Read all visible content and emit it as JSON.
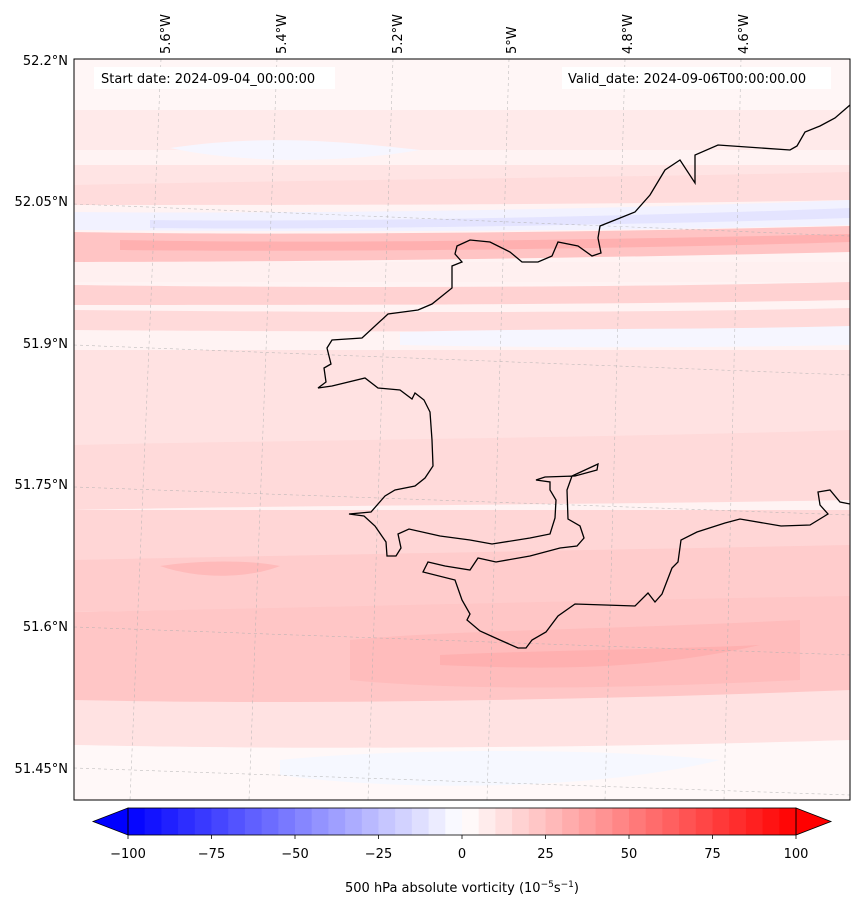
{
  "header": {
    "start_date": "Start date: 2024-09-04_00:00:00",
    "valid_date": "Valid_date: 2024-09-06T00:00:00.00"
  },
  "map": {
    "lon_labels": [
      "5.6°W",
      "5.4°W",
      "5.2°W",
      "5°W",
      "4.8°W",
      "4.6°W"
    ],
    "lat_labels": [
      "52.2°N",
      "52.05°N",
      "51.9°N",
      "51.75°N",
      "51.6°N",
      "51.45°N"
    ],
    "field": "500 hPa absolute vorticity",
    "coastline_color": "#000000"
  },
  "colorbar": {
    "label_main": "500 hPa absolute vorticity (10",
    "label_exp1": "−5",
    "label_mid": "s",
    "label_exp2": "−1",
    "label_end": ")",
    "ticks": [
      "−100",
      "−75",
      "−50",
      "−25",
      "0",
      "25",
      "50",
      "75",
      "100"
    ],
    "min": -100,
    "max": 100,
    "colormap": "bwr",
    "extend": "both"
  }
}
